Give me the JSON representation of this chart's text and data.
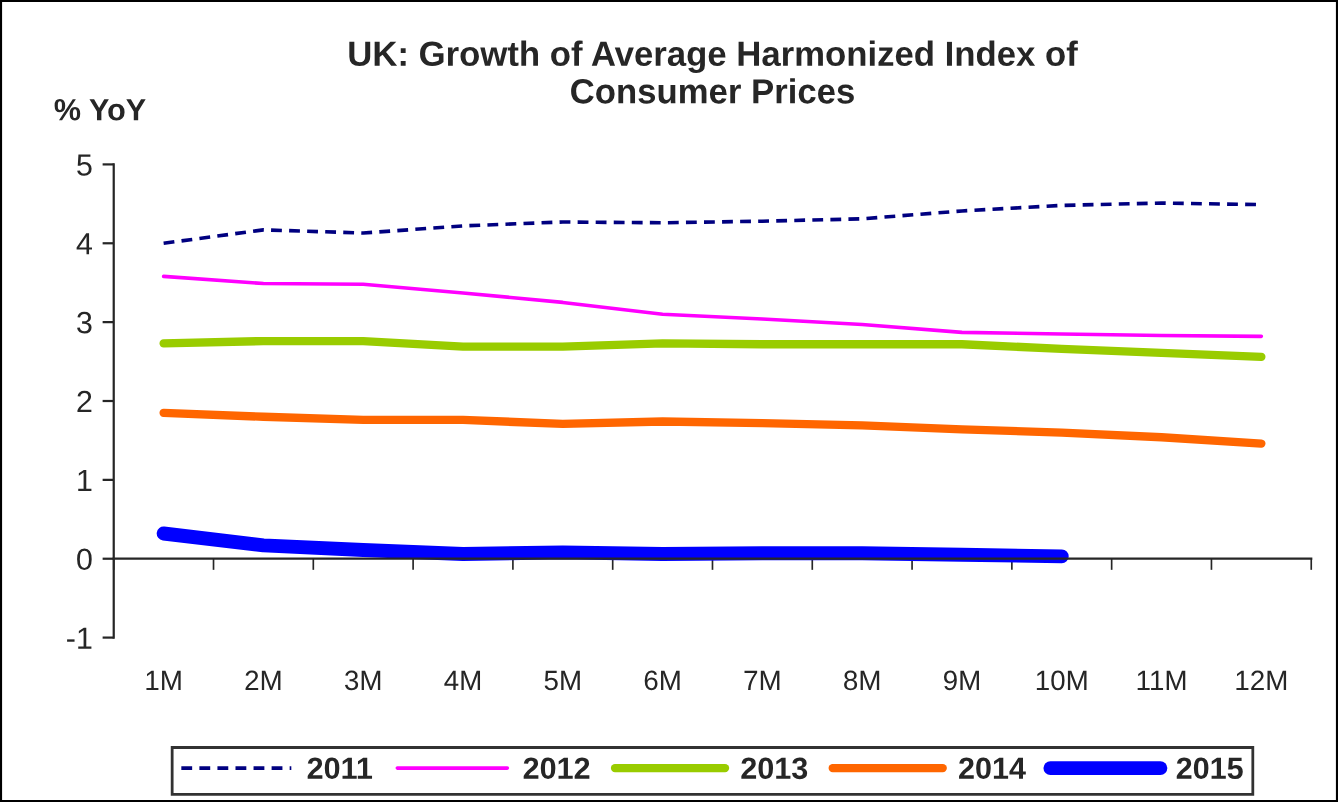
{
  "chart_data": {
    "type": "line",
    "title": "UK: Growth of Average Harmonized Index of\nConsumer Prices",
    "ylabel": "% YoY",
    "categories": [
      "1M",
      "2M",
      "3M",
      "4M",
      "5M",
      "6M",
      "7M",
      "8M",
      "9M",
      "10M",
      "11M",
      "12M"
    ],
    "ylim": [
      -1,
      5
    ],
    "yticks": [
      -1,
      0,
      1,
      2,
      3,
      4,
      5
    ],
    "legend": "bottom",
    "marker": "none",
    "series": [
      {
        "name": "2011",
        "color": "#000080",
        "line_style": "dashed",
        "values": [
          4.0,
          4.17,
          4.13,
          4.22,
          4.27,
          4.26,
          4.28,
          4.31,
          4.41,
          4.48,
          4.51,
          4.49
        ]
      },
      {
        "name": "2012",
        "color": "#ff00ff",
        "line_style": "solid",
        "values": [
          3.58,
          3.49,
          3.48,
          3.37,
          3.25,
          3.1,
          3.04,
          2.97,
          2.87,
          2.85,
          2.83,
          2.82
        ]
      },
      {
        "name": "2013",
        "color": "#99cc00",
        "line_style": "solid",
        "values": [
          2.73,
          2.76,
          2.76,
          2.69,
          2.69,
          2.73,
          2.72,
          2.72,
          2.72,
          2.66,
          2.61,
          2.56
        ]
      },
      {
        "name": "2014",
        "color": "#ff6600",
        "line_style": "solid",
        "values": [
          1.85,
          1.8,
          1.76,
          1.76,
          1.71,
          1.74,
          1.72,
          1.69,
          1.64,
          1.6,
          1.54,
          1.46
        ]
      },
      {
        "name": "2015",
        "color": "#0000ff",
        "line_style": "solid",
        "values": [
          0.32,
          0.17,
          0.11,
          0.06,
          0.08,
          0.06,
          0.07,
          0.07,
          0.05,
          0.03,
          null,
          null
        ]
      }
    ]
  }
}
